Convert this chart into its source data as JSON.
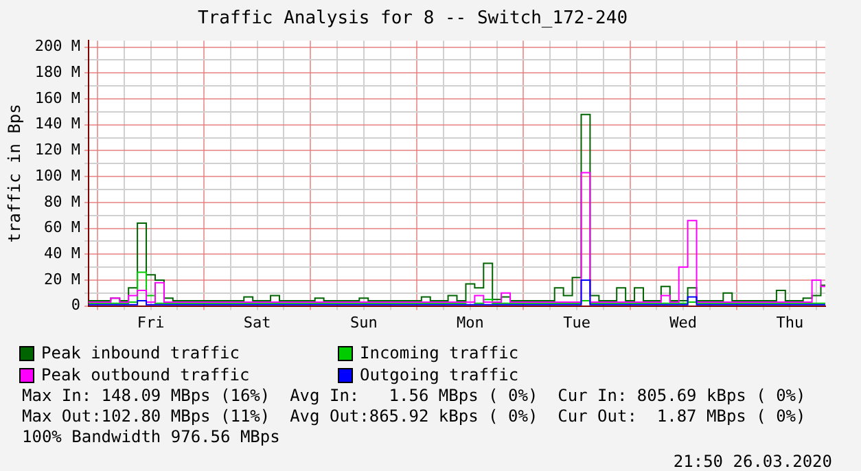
{
  "chart_data": {
    "type": "step",
    "title": "Traffic Analysis for 8 -- Switch_172-240",
    "ylabel": "traffic in Bps",
    "categories": [
      null,
      null,
      null,
      null,
      null,
      null,
      null,
      "Fri",
      null,
      null,
      null,
      null,
      null,
      null,
      null,
      null,
      null,
      null,
      null,
      "Sat",
      null,
      null,
      null,
      null,
      null,
      null,
      null,
      null,
      null,
      null,
      null,
      "Sun",
      null,
      null,
      null,
      null,
      null,
      null,
      null,
      null,
      null,
      null,
      null,
      "Mon",
      null,
      null,
      null,
      null,
      null,
      null,
      null,
      null,
      null,
      null,
      null,
      "Tue",
      null,
      null,
      null,
      null,
      null,
      null,
      null,
      null,
      null,
      null,
      null,
      "Wed",
      null,
      null,
      null,
      null,
      null,
      null,
      null,
      null,
      null,
      null,
      null,
      "Thu",
      null,
      null,
      null,
      null
    ],
    "ylim": [
      0,
      205
    ],
    "yticks": [
      {
        "value": 0,
        "label": "0"
      },
      {
        "value": 10,
        "label": null
      },
      {
        "value": 20,
        "label": "20 M"
      },
      {
        "value": 30,
        "label": null
      },
      {
        "value": 40,
        "label": "40 M"
      },
      {
        "value": 50,
        "label": null
      },
      {
        "value": 60,
        "label": "60 M"
      },
      {
        "value": 70,
        "label": null
      },
      {
        "value": 80,
        "label": "80 M"
      },
      {
        "value": 90,
        "label": null
      },
      {
        "value": 100,
        "label": "100 M"
      },
      {
        "value": 110,
        "label": null
      },
      {
        "value": 120,
        "label": "120 M"
      },
      {
        "value": 130,
        "label": null
      },
      {
        "value": 140,
        "label": "140 M"
      },
      {
        "value": 150,
        "label": null
      },
      {
        "value": 160,
        "label": "160 M"
      },
      {
        "value": 170,
        "label": null
      },
      {
        "value": 180,
        "label": "180 M"
      },
      {
        "value": 190,
        "label": null
      },
      {
        "value": 200,
        "label": "200 M"
      }
    ],
    "grid": true,
    "legend": "bottom",
    "marker": "none",
    "series": [
      {
        "name": "Peak inbound traffic",
        "color": "#006400",
        "values": [
          4,
          4,
          4,
          6,
          4,
          14,
          64,
          24,
          20,
          6,
          4,
          4,
          4,
          4,
          4,
          4,
          4,
          4,
          7,
          4,
          4,
          8,
          4,
          4,
          4,
          4,
          6,
          4,
          4,
          4,
          4,
          6,
          4,
          4,
          4,
          4,
          4,
          4,
          7,
          4,
          4,
          8,
          4,
          17,
          14,
          33,
          5,
          7,
          4,
          4,
          4,
          4,
          4,
          14,
          8,
          22,
          148,
          8,
          4,
          4,
          14,
          4,
          14,
          4,
          4,
          15,
          4,
          4,
          14,
          4,
          4,
          4,
          10,
          4,
          4,
          4,
          4,
          4,
          12,
          4,
          4,
          6,
          8,
          16
        ]
      },
      {
        "name": "Incoming traffic",
        "color": "#00cc00",
        "values": [
          2,
          2,
          2,
          2,
          2,
          3,
          26,
          8,
          2,
          2,
          2,
          2,
          2,
          2,
          2,
          2,
          2,
          2,
          2,
          2,
          2,
          2,
          2,
          2,
          2,
          2,
          2,
          2,
          2,
          2,
          2,
          2,
          2,
          2,
          2,
          2,
          2,
          2,
          2,
          2,
          2,
          2,
          2,
          3,
          2,
          5,
          2,
          2,
          2,
          2,
          2,
          2,
          2,
          2,
          2,
          2,
          4,
          2,
          2,
          2,
          2,
          2,
          2,
          2,
          2,
          2,
          2,
          2,
          3,
          2,
          2,
          2,
          2,
          2,
          2,
          2,
          2,
          2,
          2,
          2,
          2,
          2,
          2,
          2
        ]
      },
      {
        "name": "Peak outbound traffic",
        "color": "#ff00ff",
        "values": [
          3,
          3,
          3,
          6,
          3,
          8,
          12,
          3,
          18,
          3,
          3,
          3,
          3,
          3,
          3,
          3,
          3,
          3,
          3,
          3,
          3,
          3,
          3,
          3,
          3,
          3,
          3,
          3,
          3,
          3,
          3,
          3,
          3,
          3,
          3,
          3,
          3,
          3,
          3,
          3,
          3,
          3,
          3,
          3,
          8,
          3,
          3,
          10,
          3,
          3,
          3,
          3,
          3,
          3,
          3,
          3,
          103,
          3,
          3,
          3,
          3,
          3,
          3,
          3,
          3,
          8,
          3,
          30,
          66,
          3,
          3,
          3,
          3,
          3,
          3,
          3,
          3,
          3,
          3,
          3,
          3,
          3,
          20,
          15
        ]
      },
      {
        "name": "Outgoing traffic",
        "color": "#0000ff",
        "values": [
          1,
          1,
          1,
          1,
          1,
          1,
          4,
          1,
          1,
          1,
          1,
          1,
          1,
          1,
          1,
          1,
          1,
          1,
          1,
          1,
          1,
          1,
          1,
          1,
          1,
          1,
          1,
          1,
          1,
          1,
          1,
          1,
          1,
          1,
          1,
          1,
          1,
          1,
          1,
          1,
          1,
          1,
          1,
          1,
          1,
          1,
          1,
          1,
          1,
          1,
          1,
          1,
          1,
          1,
          1,
          1,
          20,
          1,
          1,
          1,
          1,
          1,
          1,
          1,
          1,
          1,
          1,
          1,
          7,
          1,
          1,
          1,
          1,
          1,
          1,
          1,
          1,
          1,
          1,
          1,
          1,
          1,
          1,
          1
        ]
      }
    ],
    "annotations": [
      "Max In: 148.09 MBps (16%)  Avg In:   1.56 MBps ( 0%)  Cur In: 805.69 kBps ( 0%)",
      "Max Out:102.80 MBps (11%)  Avg Out:865.92 kBps ( 0%)  Cur Out:  1.87 MBps ( 0%)",
      "100% Bandwidth 976.56 MBps",
      "21:50 26.03.2020"
    ]
  }
}
